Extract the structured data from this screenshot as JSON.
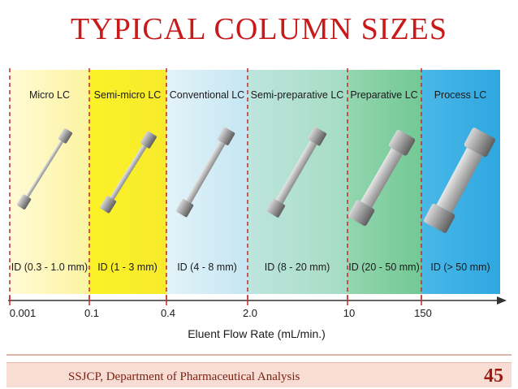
{
  "slide": {
    "title": "TYPICAL COLUMN SIZES",
    "footer": "SSJCP, Department of Pharmaceutical Analysis",
    "page_number": "45"
  },
  "diagram": {
    "axis_label": "Eluent Flow Rate (mL/min.)",
    "regions": [
      {
        "name": "Micro LC",
        "id_range": "ID (0.3 - 1.0 mm)",
        "color": "#fdf5b0",
        "tick": "0.001"
      },
      {
        "name": "Semi-micro LC",
        "id_range": "ID (1 - 3 mm)",
        "color": "#fbf12a",
        "tick": "0.1"
      },
      {
        "name": "Conventional LC",
        "id_range": "ID (4 - 8 mm)",
        "color": "#cde9f7",
        "tick": "0.4"
      },
      {
        "name": "Semi-preparative LC",
        "id_range": "ID (8 - 20 mm)",
        "color": "#aedfc9",
        "tick": "2.0"
      },
      {
        "name": "Preparative LC",
        "id_range": "ID (20 - 50 mm)",
        "color": "#7fcfa0",
        "tick": "10"
      },
      {
        "name": "Process LC",
        "id_range": "ID (> 50 mm)",
        "color": "#3fb1e6",
        "tick": "150"
      }
    ]
  }
}
